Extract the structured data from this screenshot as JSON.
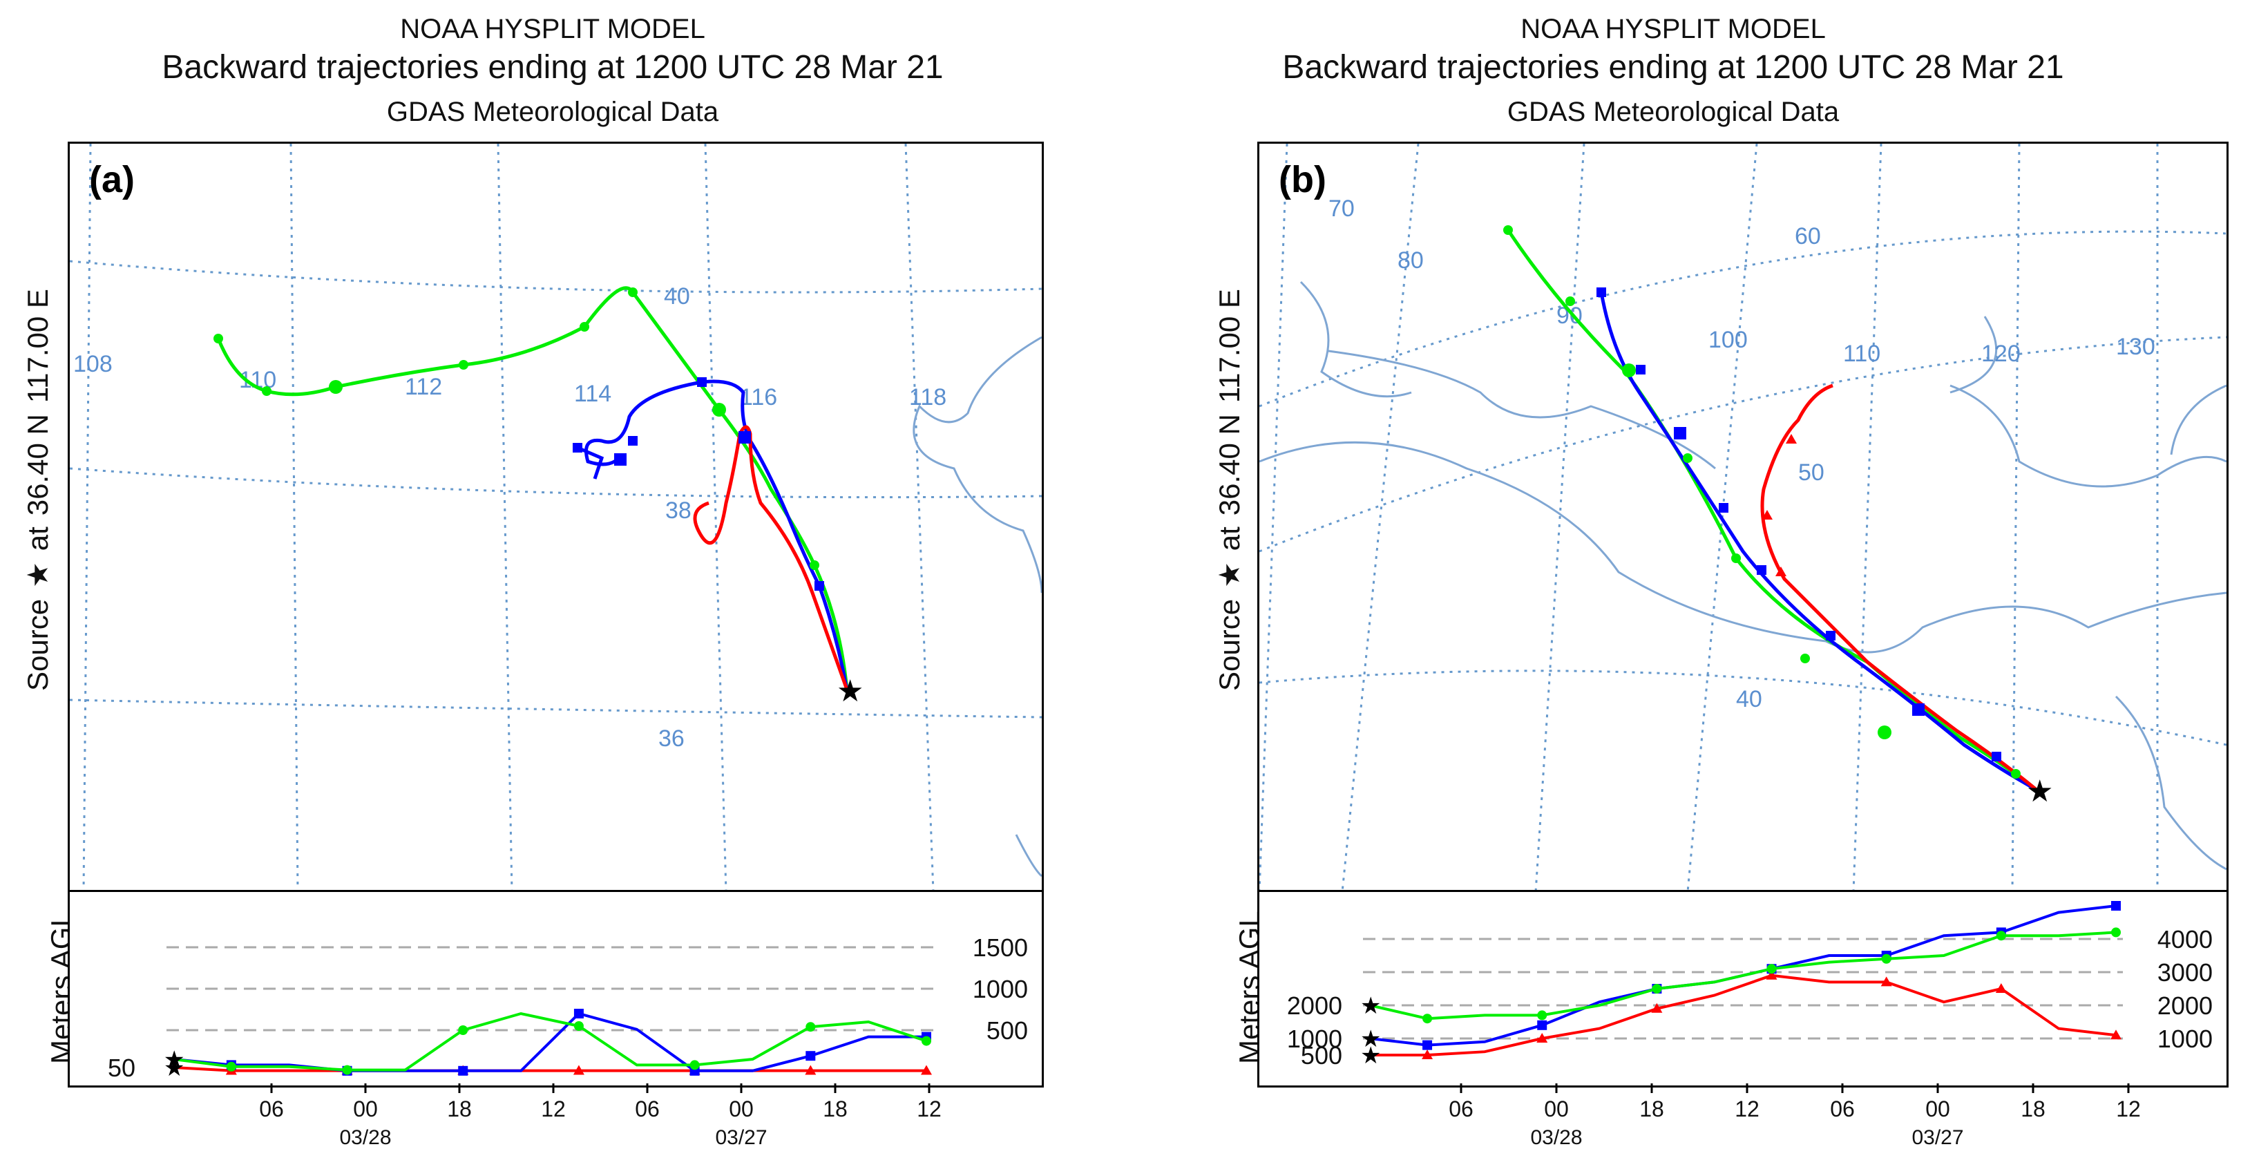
{
  "left": {
    "title1": "NOAA HYSPLIT MODEL",
    "title2": "Backward trajectories ending at 1200 UTC 28 Mar 21",
    "title3": "GDAS Meteorological Data",
    "panel_label": "(a)",
    "side_label": {
      "source": "Source",
      "star": "★",
      "at": "at",
      "lat": "36.40 N",
      "lon": "117.00 E"
    },
    "ylabel": "Meters AGL",
    "lon_labels": [
      "108",
      "110",
      "112",
      "114",
      "116",
      "118"
    ],
    "lat_labels": [
      "40",
      "38",
      "36"
    ]
  },
  "right": {
    "title1": "NOAA HYSPLIT MODEL",
    "title2": "Backward trajectories ending at 1200 UTC 28 Mar 21",
    "title3": "GDAS Meteorological Data",
    "panel_label": "(b)",
    "side_label": {
      "source": "Source",
      "star": "★",
      "at": "at",
      "lat": "36.40 N",
      "lon": "117.00 E"
    },
    "ylabel": "Meters AGL",
    "lon_labels": [
      "70",
      "80",
      "90",
      "100",
      "110",
      "120",
      "130"
    ],
    "lat_labels": [
      "60",
      "50",
      "40"
    ]
  },
  "colors": {
    "red": "#ff0000",
    "blue": "#0000ff",
    "green": "#00ee00",
    "grid": "#6699cc",
    "coast": "#7fa6d3"
  },
  "chart_data": [
    {
      "type": "line",
      "panel": "a-height",
      "ylabel": "Meters AGL",
      "x_tick_labels": [
        "06",
        "00",
        "18",
        "12",
        "06",
        "00",
        "18",
        "12"
      ],
      "date_labels": [
        "03/28",
        "03/27"
      ],
      "x_hours_before_end": [
        -78,
        -72,
        -66,
        -60,
        -54,
        -48,
        -42,
        -36,
        -30,
        -24,
        -18,
        -12,
        -6,
        0
      ],
      "ylim": [
        0,
        2000
      ],
      "y_tick_labels": [
        "50",
        "500",
        "1000",
        "1500"
      ],
      "series": [
        {
          "color": "red",
          "values": [
            12,
            12,
            12,
            12,
            12,
            12,
            12,
            12,
            12,
            12,
            12,
            12,
            12,
            50
          ]
        },
        {
          "color": "blue",
          "values": [
            420,
            420,
            190,
            10,
            10,
            510,
            700,
            10,
            10,
            10,
            10,
            80,
            80,
            150
          ]
        },
        {
          "color": "green",
          "values": [
            370,
            600,
            540,
            150,
            80,
            80,
            550,
            700,
            500,
            20,
            20,
            60,
            60,
            150
          ]
        }
      ]
    },
    {
      "type": "line",
      "panel": "b-height",
      "ylabel": "Meters AGL",
      "x_tick_labels": [
        "06",
        "00",
        "18",
        "12",
        "06",
        "00",
        "18",
        "12"
      ],
      "date_labels": [
        "03/28",
        "03/27"
      ],
      "x_hours_before_end": [
        -78,
        -72,
        -66,
        -60,
        -54,
        -48,
        -42,
        -36,
        -30,
        -24,
        -18,
        -12,
        -6,
        0
      ],
      "ylim": [
        0,
        5000
      ],
      "y_tick_labels_left": [
        "500",
        "1000",
        "2000"
      ],
      "y_tick_labels_right": [
        "1000",
        "2000",
        "3000",
        "4000"
      ],
      "series": [
        {
          "color": "red",
          "values": [
            1100,
            1300,
            2500,
            2100,
            2700,
            2700,
            2900,
            2300,
            1900,
            1300,
            1000,
            600,
            500,
            500
          ]
        },
        {
          "color": "blue",
          "values": [
            5000,
            4800,
            4200,
            4100,
            3500,
            3500,
            3100,
            2700,
            2500,
            2100,
            1400,
            900,
            800,
            1000
          ]
        },
        {
          "color": "green",
          "values": [
            4200,
            4100,
            4100,
            3500,
            3400,
            3300,
            3100,
            2700,
            2500,
            2000,
            1700,
            1700,
            1600,
            2000
          ]
        }
      ]
    }
  ]
}
